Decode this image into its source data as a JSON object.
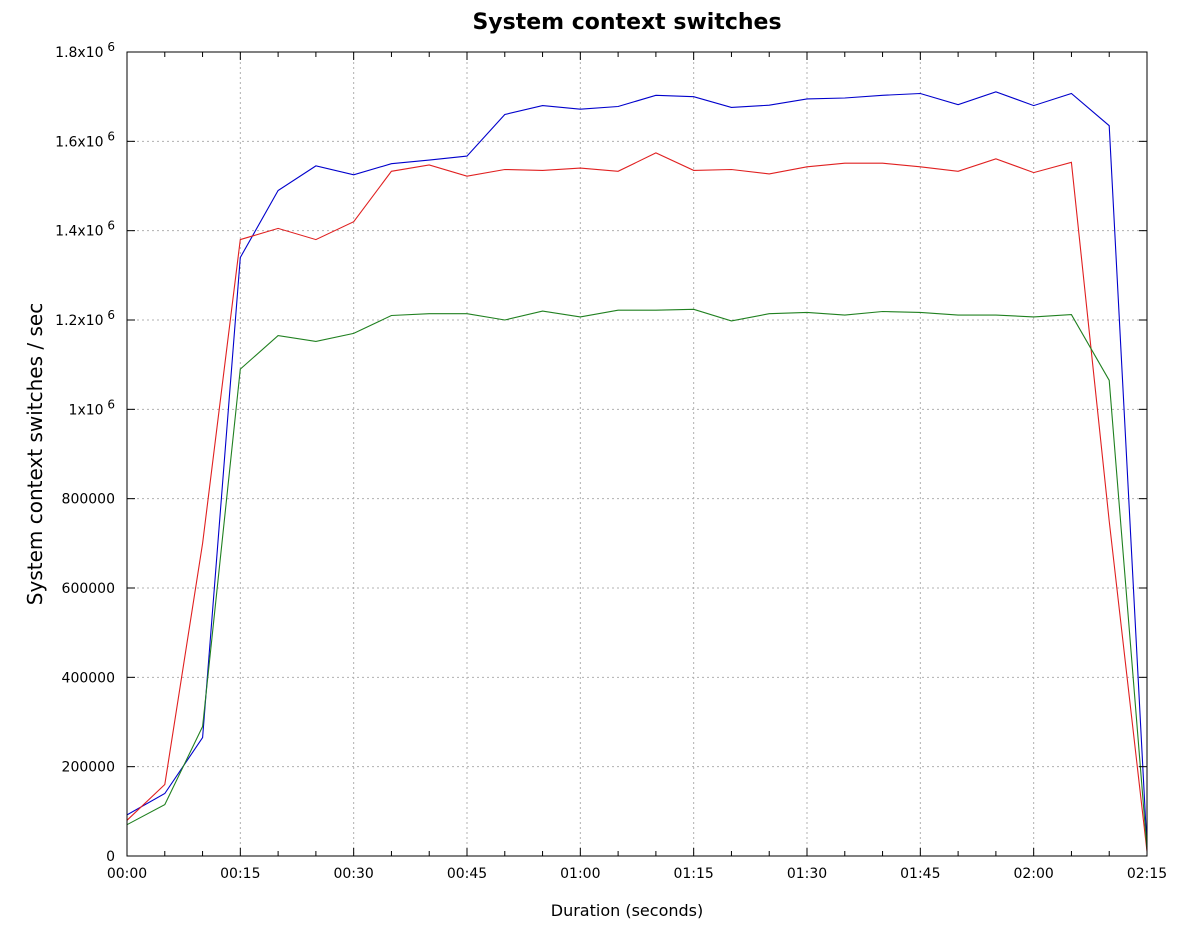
{
  "chart_data": {
    "type": "line",
    "title": "System context switches",
    "xlabel": "Duration (seconds)",
    "ylabel": "System context switches / sec",
    "ylim": [
      0,
      1800000
    ],
    "xlim_seconds": [
      0,
      135
    ],
    "grid": true,
    "legend": null,
    "x_tick_labels": [
      "00:00",
      "00:15",
      "00:30",
      "00:45",
      "01:00",
      "01:15",
      "01:30",
      "01:45",
      "02:00",
      "02:15"
    ],
    "y_tick_labels": [
      "0",
      "200000",
      "400000",
      "600000",
      "800000",
      "1x10^6",
      "1.2x10^6",
      "1.4x10^6",
      "1.6x10^6",
      "1.8x10^6"
    ],
    "x": [
      0,
      5,
      10,
      15,
      20,
      25,
      30,
      35,
      40,
      45,
      50,
      55,
      60,
      65,
      70,
      75,
      80,
      85,
      90,
      95,
      100,
      105,
      110,
      115,
      120,
      125,
      130,
      135
    ],
    "series": [
      {
        "name": "blue",
        "color": "#0000cc",
        "values": [
          92000,
          140000,
          265000,
          1340000,
          1490000,
          1545000,
          1525000,
          1550000,
          1558000,
          1567000,
          1660000,
          1680000,
          1672000,
          1678000,
          1703000,
          1700000,
          1676000,
          1681000,
          1695000,
          1697000,
          1703000,
          1707000,
          1682000,
          1711000,
          1680000,
          1707000,
          1635000,
          20000
        ]
      },
      {
        "name": "red",
        "color": "#e02020",
        "values": [
          80000,
          160000,
          700000,
          1380000,
          1405000,
          1380000,
          1420000,
          1533000,
          1547000,
          1522000,
          1537000,
          1535000,
          1540000,
          1533000,
          1574000,
          1535000,
          1537000,
          1527000,
          1543000,
          1551000,
          1551000,
          1543000,
          1533000,
          1561000,
          1530000,
          1553000,
          750000,
          10000
        ]
      },
      {
        "name": "green",
        "color": "#208020",
        "values": [
          70000,
          115000,
          290000,
          1090000,
          1165000,
          1152000,
          1170000,
          1210000,
          1214000,
          1214000,
          1200000,
          1220000,
          1207000,
          1222000,
          1222000,
          1224000,
          1198000,
          1214000,
          1217000,
          1211000,
          1219000,
          1217000,
          1211000,
          1211000,
          1207000,
          1212000,
          1065000,
          15000
        ]
      }
    ]
  }
}
